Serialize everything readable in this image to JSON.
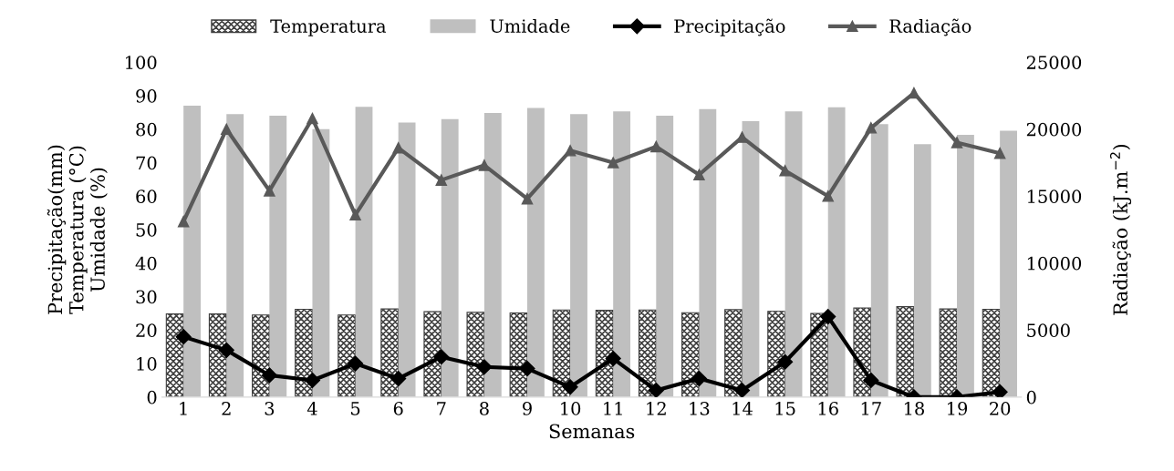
{
  "chart_data": {
    "type": "bar",
    "xlabel": "Semanas",
    "ylabel": "Precipitação(mm)\nTemperatura (°C)\nUmidade (%)",
    "y2label": "Radiação (kJ.m$^{−2}$)",
    "categories": [
      "1",
      "2",
      "3",
      "4",
      "5",
      "6",
      "7",
      "8",
      "9",
      "10",
      "11",
      "12",
      "13",
      "14",
      "15",
      "16",
      "17",
      "18",
      "19",
      "20"
    ],
    "series": [
      {
        "name": "Temperatura",
        "color": "#404040",
        "values": [
          24.8,
          24.8,
          24.5,
          26.2,
          24.5,
          26.3,
          25.5,
          25.3,
          25.1,
          26,
          25.9,
          26,
          25.2,
          26.1,
          25.6,
          25,
          26.6,
          27,
          26.3,
          26.2
        ]
      },
      {
        "name": "Umidade",
        "color": "#bfbfbf",
        "values": [
          87,
          84.5,
          84,
          80,
          86.7,
          82,
          83,
          84.8,
          86.3,
          84.5,
          85.3,
          84,
          86,
          82.4,
          85.3,
          86.5,
          81.5,
          75.5,
          78.3,
          79.5
        ]
      },
      {
        "name": "Precipitação",
        "type": "line",
        "color": "#000000",
        "marker": "diamond",
        "values": [
          18,
          14,
          6.5,
          5,
          10,
          5.5,
          12,
          9,
          8.5,
          3,
          11.5,
          2,
          5.5,
          2,
          10.5,
          24,
          5,
          0,
          0,
          1.5
        ]
      },
      {
        "name": "Radiação",
        "type": "line",
        "color": "#595959",
        "marker": "triangle",
        "axis": "y2",
        "values": [
          13100,
          20000,
          15400,
          20800,
          13600,
          18600,
          16200,
          17300,
          14800,
          18400,
          17500,
          18700,
          16600,
          19400,
          16900,
          15000,
          20100,
          22700,
          19000,
          18200
        ]
      }
    ],
    "ylim": [
      0,
      100
    ],
    "yticks": [
      0,
      10,
      20,
      30,
      40,
      50,
      60,
      70,
      80,
      90,
      100
    ],
    "y2lim": [
      0,
      25000
    ],
    "y2ticks": [
      0,
      5000,
      10000,
      15000,
      20000,
      25000
    ],
    "legend": "top",
    "grid": false
  }
}
